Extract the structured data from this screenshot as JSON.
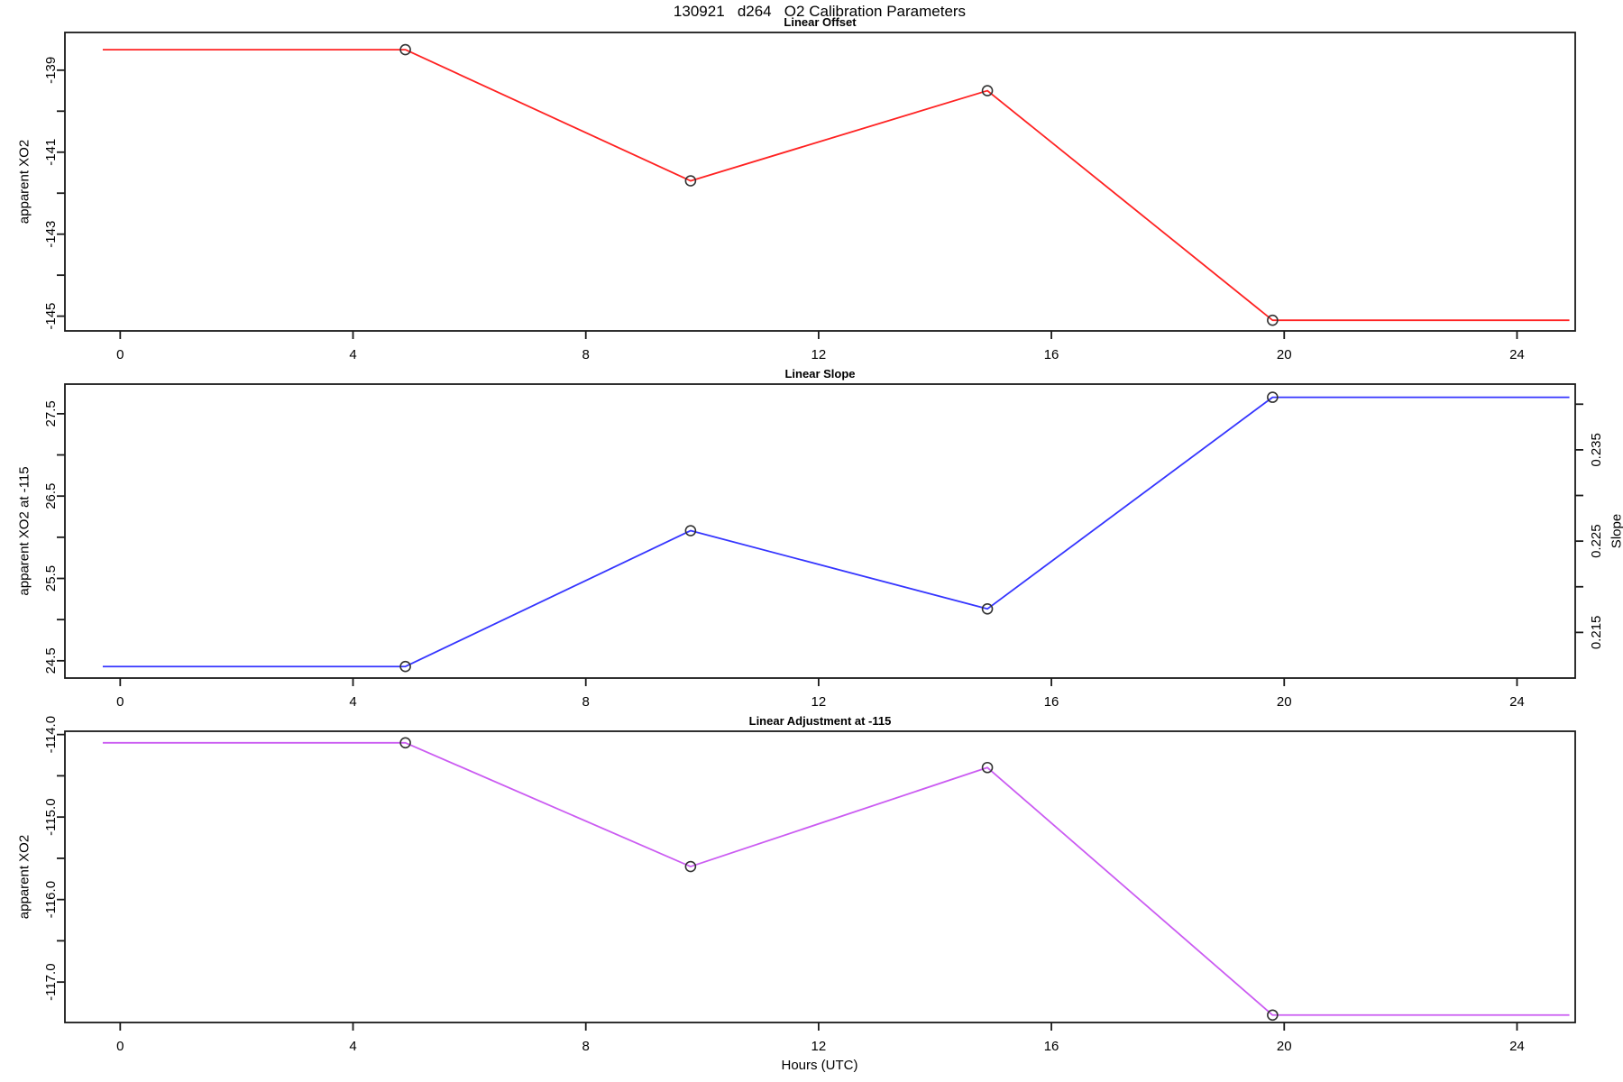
{
  "title": "130921   d264   O2 Calibration Parameters",
  "xlabel": "Hours (UTC)",
  "colors": {
    "frame": "#1a1a1a",
    "marker": "#333333",
    "offset_line": "#ff2222",
    "slope_line": "#3535ff",
    "adjustment_line": "#cb5cf2",
    "text": "#000000"
  },
  "chart_data": [
    {
      "type": "line",
      "title": "Linear Offset",
      "ylabel": "apparent XO2",
      "color": "#ff2222",
      "x": [
        -0.3,
        4.9,
        9.8,
        14.9,
        19.8,
        24.9
      ],
      "y": [
        -138.5,
        -138.5,
        -141.7,
        -139.5,
        -145.1,
        -145.1
      ],
      "marker_at": [
        1,
        2,
        3,
        4
      ],
      "xlim": [
        -0.95,
        25.0
      ],
      "ylim": [
        -145.36,
        -138.08
      ],
      "xticks": [
        0,
        4,
        8,
        12,
        16,
        20,
        24
      ],
      "yticks": [
        {
          "v": -145,
          "label": "-145"
        },
        {
          "v": -144,
          "label": ""
        },
        {
          "v": -143,
          "label": "-143"
        },
        {
          "v": -142,
          "label": ""
        },
        {
          "v": -141,
          "label": "-141"
        },
        {
          "v": -140,
          "label": ""
        },
        {
          "v": -139,
          "label": "-139"
        }
      ]
    },
    {
      "type": "line",
      "title": "Linear Slope",
      "ylabel": "apparent XO2 at -115",
      "y2label": "Slope",
      "color": "#3535ff",
      "x": [
        -0.3,
        4.9,
        9.8,
        14.9,
        19.8,
        24.9
      ],
      "y": [
        24.43,
        24.43,
        26.08,
        25.13,
        27.7,
        27.7
      ],
      "y2_values": [
        0.211,
        0.211,
        0.226,
        0.218,
        0.241,
        0.241
      ],
      "marker_at": [
        1,
        2,
        3,
        4
      ],
      "xlim": [
        -0.95,
        25.0
      ],
      "ylim": [
        24.29,
        27.86
      ],
      "y2lim": [
        0.21,
        0.2422
      ],
      "xticks": [
        0,
        4,
        8,
        12,
        16,
        20,
        24
      ],
      "yticks": [
        {
          "v": 24.5,
          "label": "24.5"
        },
        {
          "v": 25.0,
          "label": ""
        },
        {
          "v": 25.5,
          "label": "25.5"
        },
        {
          "v": 26.0,
          "label": ""
        },
        {
          "v": 26.5,
          "label": "26.5"
        },
        {
          "v": 27.0,
          "label": ""
        },
        {
          "v": 27.5,
          "label": "27.5"
        }
      ],
      "y2ticks": [
        {
          "v": 0.215,
          "label": "0.215"
        },
        {
          "v": 0.22,
          "label": ""
        },
        {
          "v": 0.225,
          "label": "0.225"
        },
        {
          "v": 0.23,
          "label": ""
        },
        {
          "v": 0.235,
          "label": "0.235"
        },
        {
          "v": 0.24,
          "label": ""
        }
      ]
    },
    {
      "type": "line",
      "title": "Linear Adjustment at -115",
      "ylabel": "apparent XO2",
      "color": "#cb5cf2",
      "x": [
        -0.3,
        4.9,
        9.8,
        14.9,
        19.8,
        24.9
      ],
      "y": [
        -114.1,
        -114.1,
        -115.6,
        -114.4,
        -117.4,
        -117.4
      ],
      "marker_at": [
        1,
        2,
        3,
        4
      ],
      "xlim": [
        -0.95,
        25.0
      ],
      "ylim": [
        -117.49,
        -113.96
      ],
      "xticks": [
        0,
        4,
        8,
        12,
        16,
        20,
        24
      ],
      "yticks": [
        {
          "v": -117.0,
          "label": "-117.0"
        },
        {
          "v": -116.5,
          "label": ""
        },
        {
          "v": -116.0,
          "label": "-116.0"
        },
        {
          "v": -115.5,
          "label": ""
        },
        {
          "v": -115.0,
          "label": "-115.0"
        },
        {
          "v": -114.5,
          "label": ""
        },
        {
          "v": -114.0,
          "label": "-114.0"
        }
      ]
    }
  ]
}
